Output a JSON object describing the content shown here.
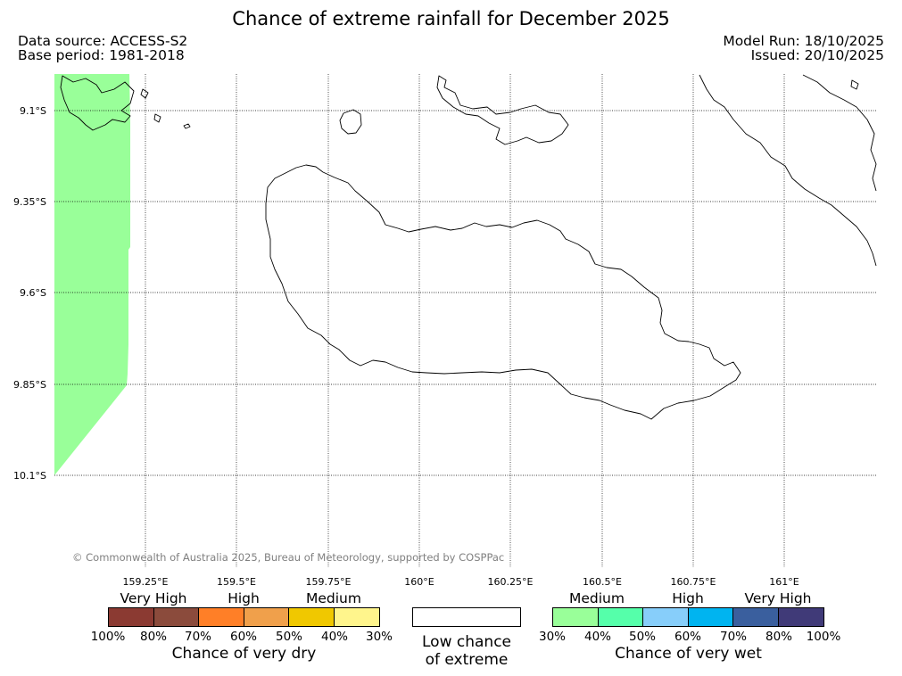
{
  "title": "Chance of extreme rainfall for December 2025",
  "data_source": "Data source: ACCESS-S2",
  "base_period": "Base period: 1981-2018",
  "model_run": "Model Run: 18/10/2025",
  "issued": "Issued: 20/10/2025",
  "copyright": "© Commonwealth of Australia 2025, Bureau of Meteorology, supported by COSPPac",
  "lat_labels": [
    "9.1°S",
    "9.35°S",
    "9.6°S",
    "9.85°S",
    "10.1°S"
  ],
  "lon_labels": [
    "159.25°E",
    "159.5°E",
    "159.75°E",
    "160°E",
    "160.25°E",
    "160.5°E",
    "160.75°E",
    "161°E"
  ],
  "map_colors": {
    "wet_medium": "#99ff99",
    "coastline": "#000000",
    "grid": "#000000"
  },
  "dry_legend": {
    "groups": [
      "Very High",
      "High",
      "Medium"
    ],
    "colors": [
      "#8b3a32",
      "#8b4b3c",
      "#ff7f27",
      "#f0a04b",
      "#f0c800",
      "#fff58c"
    ],
    "ticks": [
      "100%",
      "80%",
      "70%",
      "60%",
      "50%",
      "40%",
      "30%"
    ],
    "title": "Chance of very dry"
  },
  "low_chance": {
    "line1": "Low chance",
    "line2": "of extreme"
  },
  "wet_legend": {
    "groups": [
      "Medium",
      "High",
      "Very High"
    ],
    "colors": [
      "#99ff99",
      "#55ffaa",
      "#87cefa",
      "#00b4f0",
      "#3a5f9e",
      "#403a78"
    ],
    "ticks": [
      "30%",
      "40%",
      "50%",
      "60%",
      "70%",
      "80%",
      "100%"
    ],
    "title": "Chance of very wet"
  }
}
